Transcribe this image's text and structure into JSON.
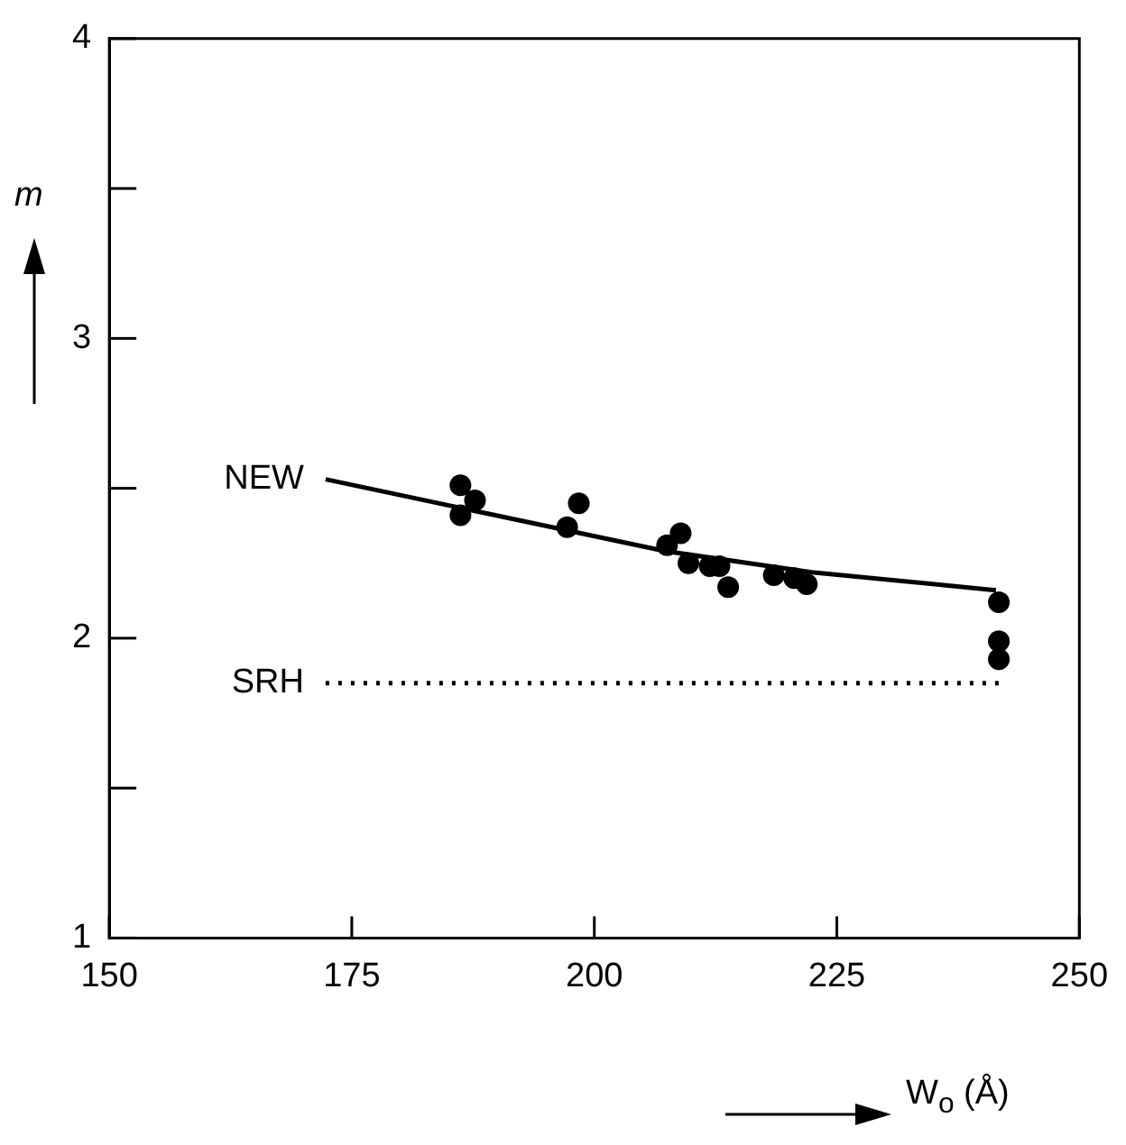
{
  "chart_data": {
    "type": "scatter",
    "xlabel": "W$_{o}$ (Å)",
    "ylabel": "m",
    "marker": "circle",
    "grid": false,
    "legend": false,
    "xlim": [
      150,
      250
    ],
    "xticks": [
      150,
      175,
      200,
      225,
      250
    ],
    "ylim": [
      1,
      4
    ],
    "yticks": [
      1,
      {
        "value": 1.5,
        "label": null
      },
      2,
      {
        "value": 2.5,
        "label": null
      },
      3,
      {
        "value": 3.5,
        "label": null
      },
      4
    ],
    "series": [
      {
        "type": "scatter",
        "color": "#000000",
        "x": [
          186.2,
          187.7,
          186.2,
          198.4,
          197.2,
          208.9,
          207.5,
          209.7,
          211.9,
          212.9,
          213.8,
          218.5,
          220.6,
          221.9,
          241.7,
          241.7,
          241.7
        ],
        "values": [
          2.51,
          2.46,
          2.41,
          2.45,
          2.37,
          2.35,
          2.31,
          2.25,
          2.24,
          2.24,
          2.17,
          2.21,
          2.2,
          2.18,
          2.12,
          1.99,
          1.93
        ]
      },
      {
        "type": "line",
        "name": "NEW",
        "color": "#000000",
        "line_style": "solid",
        "marker": "none",
        "x": [
          172.3,
          189.8,
          207.4,
          222.4,
          241.4
        ],
        "values": [
          2.53,
          2.41,
          2.29,
          2.22,
          2.16
        ]
      },
      {
        "type": "line",
        "name": "SRH",
        "color": "#000000",
        "line_style": "dotted",
        "marker": "none",
        "x": [
          172.3,
          241.7
        ],
        "values": [
          1.85,
          1.85
        ]
      }
    ]
  }
}
